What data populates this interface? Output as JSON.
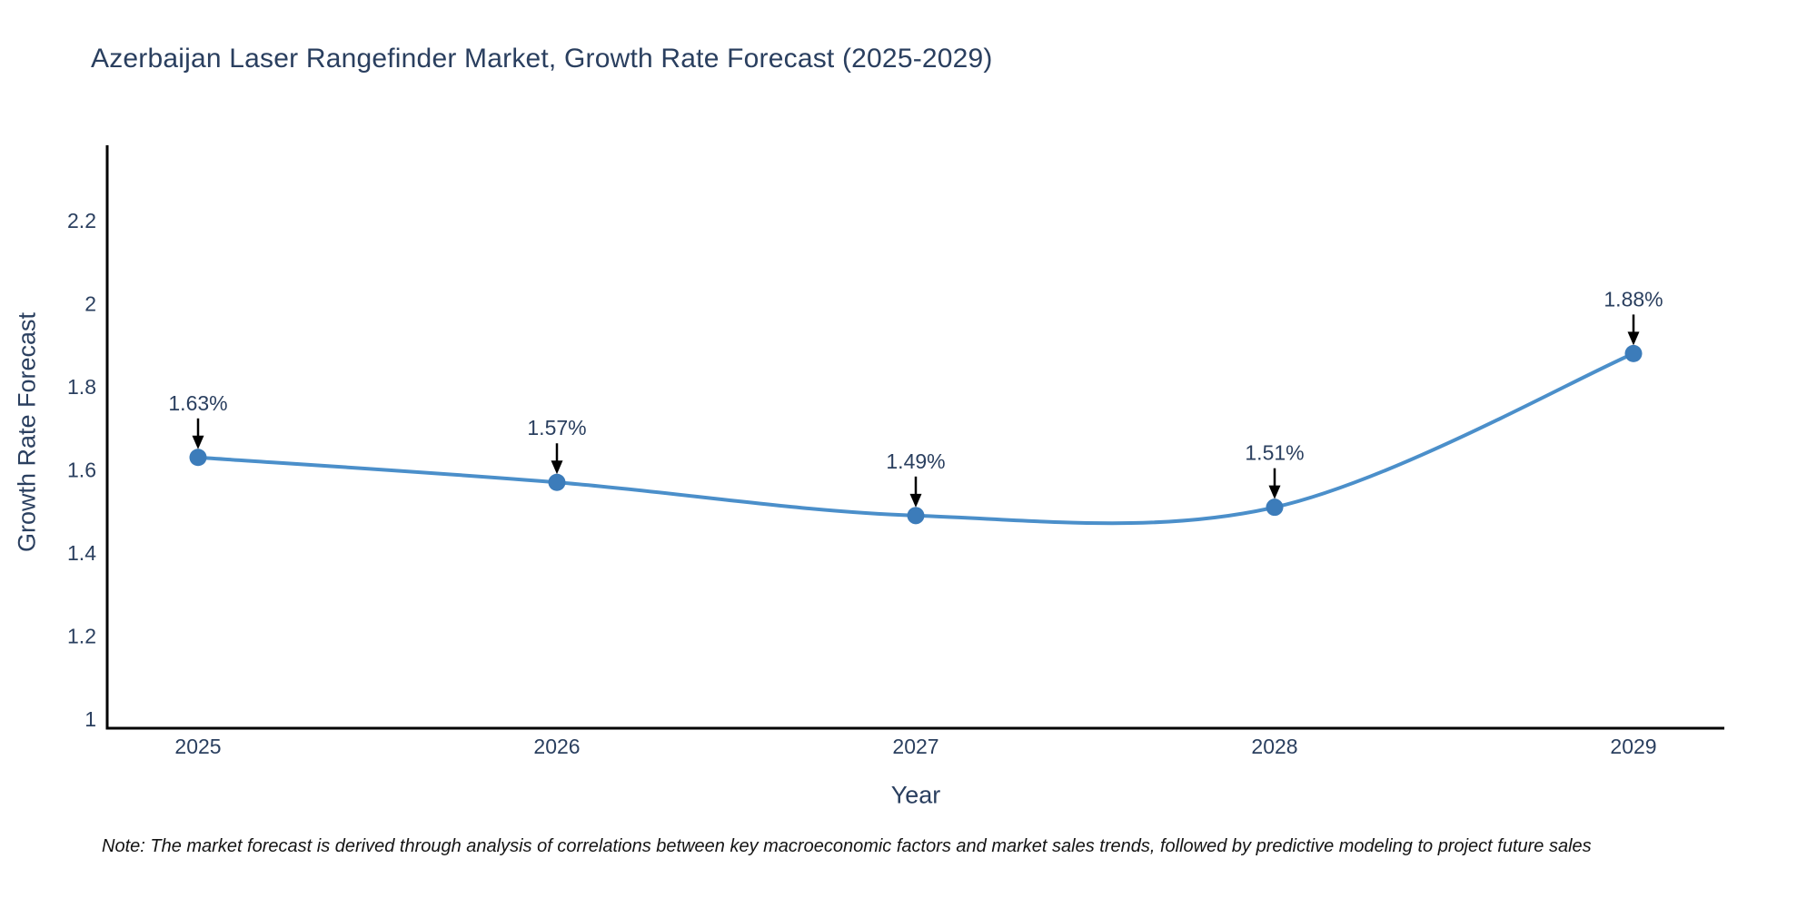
{
  "chart": {
    "title": "Azerbaijan Laser Rangefinder Market, Growth Rate Forecast (2025-2029)",
    "note": "Note: The market forecast is derived through analysis of correlations between key macroeconomic factors and market sales trends, followed by predictive modeling to project future sales"
  },
  "chart_data": {
    "type": "line",
    "title": "Azerbaijan Laser Rangefinder Market, Growth Rate Forecast (2025-2029)",
    "xlabel": "Year",
    "ylabel": "Growth Rate Forecast",
    "categories": [
      "2025",
      "2026",
      "2027",
      "2028",
      "2029"
    ],
    "series": [
      {
        "name": "Growth Rate Forecast",
        "values": [
          1.63,
          1.57,
          1.49,
          1.51,
          1.88
        ],
        "point_labels": [
          "1.63%",
          "1.57%",
          "1.49%",
          "1.51%",
          "1.88%"
        ]
      }
    ],
    "ylim": [
      0.98,
      2.4
    ],
    "yticks": [
      1,
      1.2,
      1.4,
      1.6,
      1.8,
      2,
      2.2
    ],
    "ytick_labels": [
      "1",
      "1.2",
      "1.4",
      "1.6",
      "1.8",
      "2",
      "2.2"
    ],
    "grid": false,
    "legend_position": "none",
    "line_shape": "spline",
    "colors": {
      "line": "#4b8fca",
      "marker": "#3c7cba",
      "axis": "#010101",
      "text": "#2a3f5f",
      "annotation_arrow": "#000000"
    }
  }
}
